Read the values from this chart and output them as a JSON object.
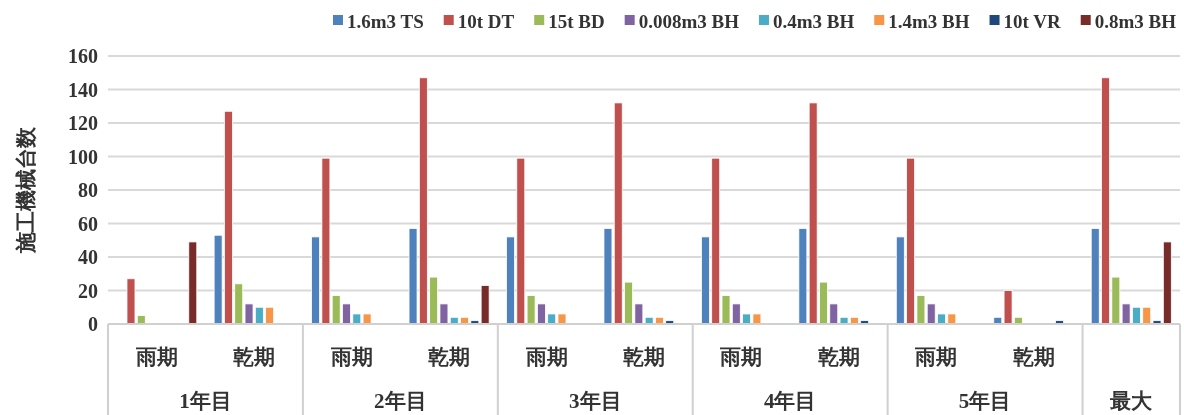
{
  "chart_data": {
    "type": "bar",
    "ylabel": "施工機械台数",
    "categories": [
      "雨期",
      "乾期",
      "雨期",
      "乾期",
      "雨期",
      "乾期",
      "雨期",
      "乾期",
      "雨期",
      "乾期",
      null
    ],
    "annotations": [
      "1年目",
      "2年目",
      "3年目",
      "4年目",
      "5年目",
      "最大"
    ],
    "series": [
      {
        "name": "1.6m3 TS",
        "color": "#4f81bd",
        "values": [
          null,
          53,
          52,
          57,
          52,
          57,
          52,
          57,
          52,
          4,
          57
        ]
      },
      {
        "name": "10t DT",
        "color": "#c0504d",
        "values": [
          27,
          127,
          99,
          147,
          99,
          132,
          99,
          132,
          99,
          20,
          147
        ]
      },
      {
        "name": "15t BD",
        "color": "#9bbb59",
        "values": [
          5,
          24,
          17,
          28,
          17,
          25,
          17,
          25,
          17,
          4,
          28
        ]
      },
      {
        "name": "0.008m3 BH",
        "color": "#8064a2",
        "values": [
          null,
          12,
          12,
          12,
          12,
          12,
          12,
          12,
          12,
          null,
          12
        ]
      },
      {
        "name": "0.4m3 BH",
        "color": "#4bacc6",
        "values": [
          null,
          10,
          6,
          4,
          6,
          4,
          6,
          4,
          6,
          null,
          10
        ]
      },
      {
        "name": "1.4m3 BH",
        "color": "#f79646",
        "values": [
          null,
          10,
          6,
          4,
          6,
          4,
          6,
          4,
          6,
          null,
          10
        ]
      },
      {
        "name": "10t VR",
        "color": "#1f497d",
        "values": [
          null,
          null,
          null,
          2,
          null,
          2,
          null,
          2,
          null,
          2,
          2
        ]
      },
      {
        "name": "0.8m3 BH",
        "color": "#772c2a",
        "values": [
          49,
          null,
          null,
          23,
          null,
          null,
          null,
          null,
          null,
          null,
          49
        ]
      }
    ],
    "ylim": [
      0,
      160
    ],
    "yticks": [
      0,
      20,
      40,
      60,
      80,
      100,
      120,
      140,
      160
    ],
    "grid": "y",
    "legend": "top"
  }
}
